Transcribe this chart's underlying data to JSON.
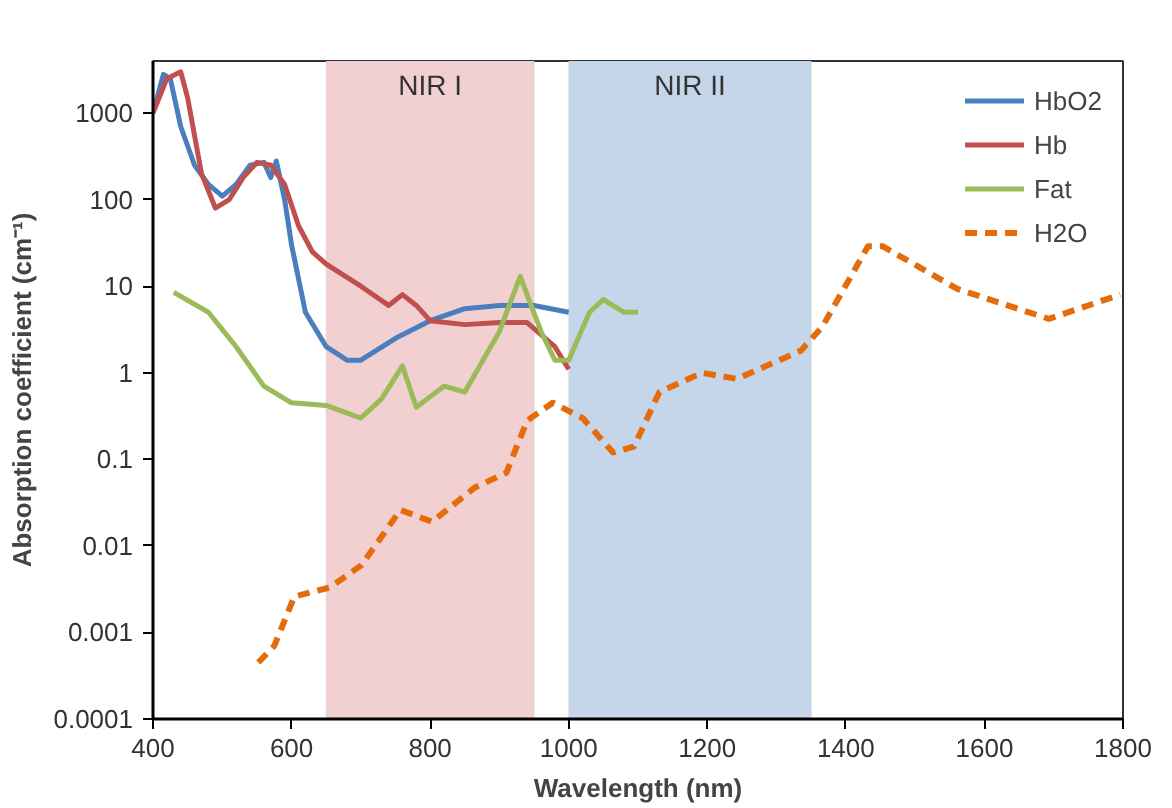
{
  "chart_data": {
    "type": "line",
    "xlabel": "Wavelength (nm)",
    "ylabel": "Absorption coefficient (cm⁻¹)",
    "log": "y",
    "xlim": [
      400,
      1800
    ],
    "xticks": [
      400,
      600,
      800,
      1000,
      1200,
      1400,
      1600,
      1800
    ],
    "ylim": [
      0.0001,
      4000
    ],
    "yticks": [
      0.0001,
      0.001,
      0.01,
      0.1,
      1,
      10,
      100,
      1000
    ],
    "grid": false,
    "legend": "top right",
    "bands": [
      {
        "axis": "x",
        "from": 650,
        "to": 950,
        "label": "NIR I",
        "color": "#f2cfd0"
      },
      {
        "axis": "x",
        "from": 1000,
        "to": 1350,
        "label": "NIR II",
        "color": "#c6d6ea"
      }
    ],
    "series": [
      {
        "name": "HbO2",
        "color": "#4a7ebf",
        "line_style": "solid",
        "x": [
          400,
          415,
          425,
          440,
          460,
          480,
          500,
          520,
          540,
          560,
          570,
          578,
          590,
          600,
          620,
          650,
          680,
          700,
          750,
          800,
          850,
          900,
          950,
          1000
        ],
        "values": [
          1000,
          2800,
          2500,
          700,
          250,
          150,
          110,
          150,
          250,
          270,
          180,
          280,
          100,
          30,
          5,
          2,
          1.4,
          1.4,
          2.5,
          4,
          5.5,
          6,
          6,
          5
        ]
      },
      {
        "name": "Hb",
        "color": "#c0504d",
        "line_style": "solid",
        "x": [
          400,
          420,
          440,
          450,
          470,
          490,
          510,
          530,
          550,
          570,
          590,
          610,
          630,
          650,
          700,
          740,
          760,
          780,
          800,
          850,
          900,
          940,
          980,
          1000
        ],
        "values": [
          1000,
          2500,
          3000,
          1500,
          200,
          80,
          100,
          180,
          270,
          250,
          150,
          50,
          25,
          18,
          10,
          6,
          8,
          6,
          4,
          3.6,
          3.8,
          3.8,
          2,
          1.1
        ]
      },
      {
        "name": "Fat",
        "color": "#9bbb59",
        "line_style": "solid",
        "x": [
          430,
          480,
          520,
          560,
          600,
          650,
          700,
          730,
          760,
          780,
          820,
          850,
          900,
          930,
          960,
          980,
          1000,
          1030,
          1050,
          1080,
          1100
        ],
        "values": [
          8.5,
          5,
          2,
          0.7,
          0.45,
          0.42,
          0.3,
          0.5,
          1.2,
          0.4,
          0.7,
          0.6,
          3,
          13,
          3,
          1.4,
          1.4,
          5,
          7,
          5,
          5
        ]
      },
      {
        "name": "H2O",
        "color": "#e46c0a",
        "line_style": "dashed",
        "x": [
          552,
          575,
          604,
          655,
          701,
          757,
          803,
          864,
          910,
          940,
          977,
          1020,
          1064,
          1094,
          1131,
          1192,
          1243,
          1335,
          1366,
          1432,
          1453,
          1561,
          1693,
          1796
        ],
        "values": [
          0.00045,
          0.0007,
          0.0026,
          0.0033,
          0.006,
          0.026,
          0.019,
          0.047,
          0.07,
          0.28,
          0.45,
          0.3,
          0.12,
          0.14,
          0.6,
          1.0,
          0.85,
          1.8,
          3.4,
          29,
          29,
          9.3,
          4.2,
          8
        ]
      }
    ]
  }
}
